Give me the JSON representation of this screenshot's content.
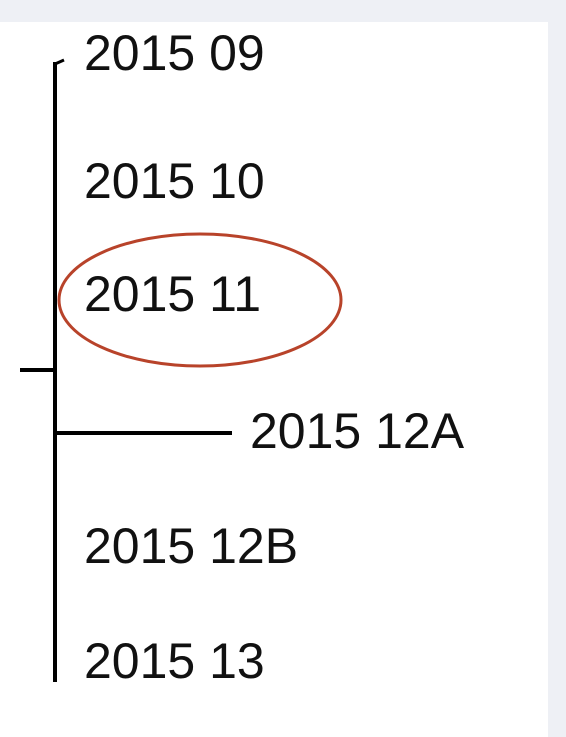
{
  "nodes": [
    {
      "label": "2015 09"
    },
    {
      "label": "2015 10"
    },
    {
      "label": "2015 11"
    },
    {
      "label": "2015 12A"
    },
    {
      "label": "2015 12B"
    },
    {
      "label": "2015 13"
    }
  ]
}
